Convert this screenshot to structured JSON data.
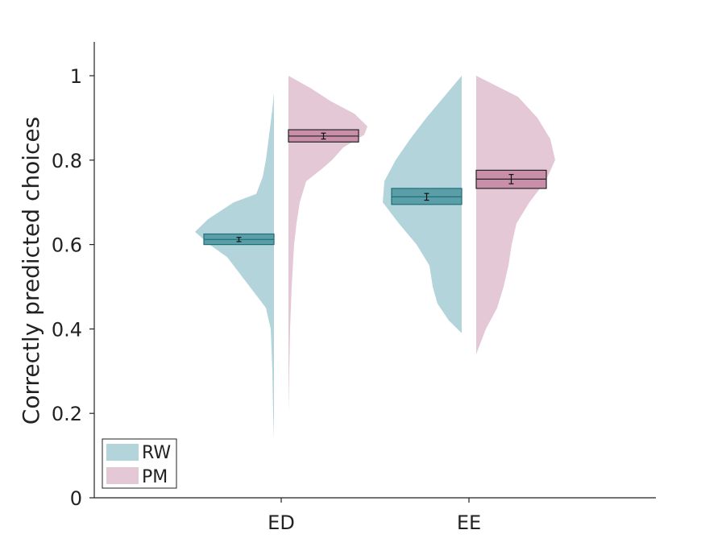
{
  "chart_data": {
    "type": "violin",
    "title": "",
    "ylabel": "Correctly predicted choices",
    "xlabel": "",
    "ylim": [
      0,
      1.08
    ],
    "yticks": [
      0,
      0.2,
      0.4,
      0.6,
      0.8,
      1
    ],
    "ytick_labels": [
      "0",
      "0.2",
      "0.4",
      "0.6",
      "0.8",
      "1"
    ],
    "categories": [
      "ED",
      "EE"
    ],
    "legend": {
      "position": "bottom-left",
      "entries": [
        "RW",
        "PM"
      ]
    },
    "series": [
      {
        "name": "RW",
        "color": "#b3d4da",
        "box_fill": "#5a9ea8",
        "box_edge": "#1f6e78",
        "side": "left",
        "groups": [
          {
            "category": "ED",
            "mean": 0.612,
            "sem": 0.005,
            "box_low": 0.6,
            "box_high": 0.625,
            "density": [
              [
                0.14,
                0.0
              ],
              [
                0.2,
                0.01
              ],
              [
                0.3,
                0.02
              ],
              [
                0.4,
                0.04
              ],
              [
                0.45,
                0.1
              ],
              [
                0.48,
                0.22
              ],
              [
                0.52,
                0.38
              ],
              [
                0.57,
                0.58
              ],
              [
                0.6,
                0.8
              ],
              [
                0.63,
                0.98
              ],
              [
                0.66,
                0.82
              ],
              [
                0.7,
                0.5
              ],
              [
                0.72,
                0.22
              ],
              [
                0.76,
                0.14
              ],
              [
                0.8,
                0.1
              ],
              [
                0.86,
                0.06
              ],
              [
                0.92,
                0.02
              ],
              [
                0.96,
                0.0
              ]
            ]
          },
          {
            "category": "EE",
            "mean": 0.713,
            "sem": 0.008,
            "box_low": 0.695,
            "box_high": 0.733,
            "density": [
              [
                0.39,
                0.0
              ],
              [
                0.42,
                0.16
              ],
              [
                0.46,
                0.3
              ],
              [
                0.5,
                0.36
              ],
              [
                0.55,
                0.4
              ],
              [
                0.6,
                0.56
              ],
              [
                0.65,
                0.78
              ],
              [
                0.7,
                0.98
              ],
              [
                0.75,
                0.96
              ],
              [
                0.8,
                0.82
              ],
              [
                0.85,
                0.64
              ],
              [
                0.9,
                0.44
              ],
              [
                0.95,
                0.22
              ],
              [
                1.0,
                0.0
              ]
            ]
          }
        ]
      },
      {
        "name": "PM",
        "color": "#e5c8d6",
        "box_fill": "#c98fa8",
        "box_edge": "#222222",
        "side": "right",
        "groups": [
          {
            "category": "ED",
            "mean": 0.857,
            "sem": 0.007,
            "box_low": 0.843,
            "box_high": 0.872,
            "density": [
              [
                0.2,
                0.0
              ],
              [
                0.3,
                0.01
              ],
              [
                0.4,
                0.02
              ],
              [
                0.5,
                0.04
              ],
              [
                0.6,
                0.07
              ],
              [
                0.65,
                0.1
              ],
              [
                0.7,
                0.14
              ],
              [
                0.75,
                0.22
              ],
              [
                0.78,
                0.42
              ],
              [
                0.8,
                0.54
              ],
              [
                0.83,
                0.68
              ],
              [
                0.86,
                0.94
              ],
              [
                0.88,
                0.98
              ],
              [
                0.91,
                0.82
              ],
              [
                0.94,
                0.52
              ],
              [
                0.97,
                0.28
              ],
              [
                1.0,
                0.0
              ]
            ]
          },
          {
            "category": "EE",
            "mean": 0.755,
            "sem": 0.011,
            "box_low": 0.733,
            "box_high": 0.776,
            "density": [
              [
                0.34,
                0.0
              ],
              [
                0.4,
                0.12
              ],
              [
                0.45,
                0.26
              ],
              [
                0.5,
                0.34
              ],
              [
                0.55,
                0.4
              ],
              [
                0.6,
                0.44
              ],
              [
                0.65,
                0.5
              ],
              [
                0.7,
                0.66
              ],
              [
                0.75,
                0.86
              ],
              [
                0.8,
                0.98
              ],
              [
                0.85,
                0.92
              ],
              [
                0.9,
                0.76
              ],
              [
                0.95,
                0.52
              ],
              [
                1.0,
                0.0
              ]
            ]
          }
        ]
      }
    ]
  }
}
